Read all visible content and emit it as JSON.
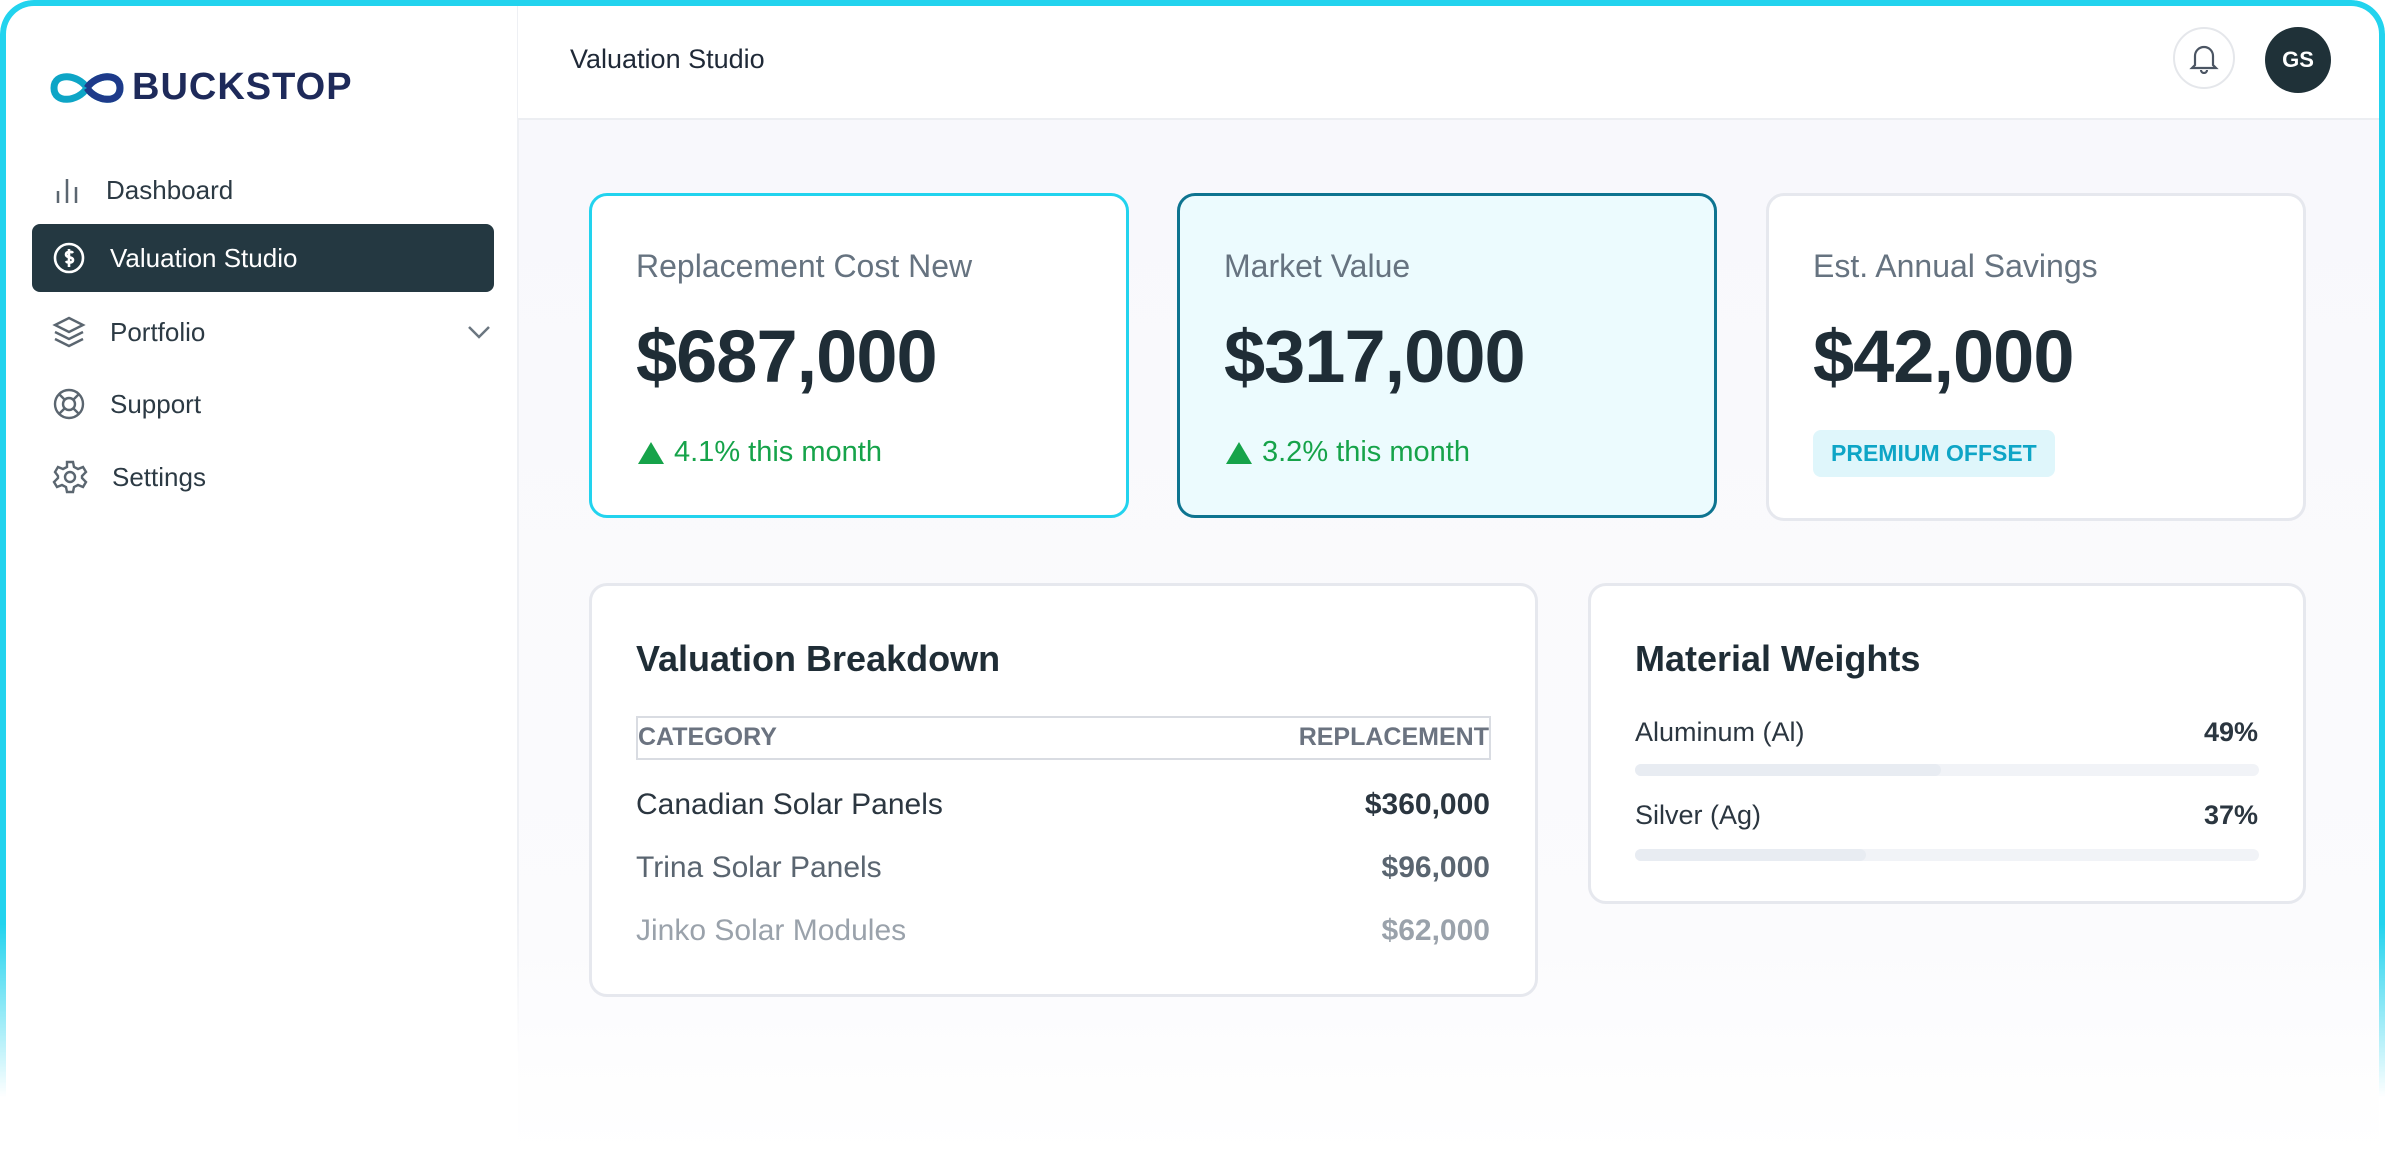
{
  "brand": "BUCKSTOP",
  "nav": [
    {
      "label": "Dashboard"
    },
    {
      "label": "Valuation Studio"
    },
    {
      "label": "Portfolio"
    },
    {
      "label": "Support"
    },
    {
      "label": "Settings"
    }
  ],
  "header": {
    "title": "Valuation Studio",
    "avatar": "GS"
  },
  "kpis": [
    {
      "label": "Replacement Cost New",
      "value": "$687,000",
      "change": "4.1% this month"
    },
    {
      "label": "Market Value",
      "value": "$317,000",
      "change": "3.2% this month"
    },
    {
      "label": "Est. Annual Savings",
      "value": "$42,000",
      "badge": "PREMIUM OFFSET"
    }
  ],
  "breakdown": {
    "title": "Valuation Breakdown",
    "columns": [
      "CATEGORY",
      "REPLACEMENT"
    ],
    "rows": [
      [
        "Canadian Solar Panels",
        "$360,000"
      ],
      [
        "Trina Solar Panels",
        "$96,000"
      ],
      [
        "Jinko Solar Modules",
        "$62,000"
      ]
    ]
  },
  "materials": {
    "title": "Material Weights",
    "items": [
      {
        "name": "Aluminum (Al)",
        "value": 49,
        "value_label": "49%"
      },
      {
        "name": "Silver (Ag)",
        "value": 37,
        "value_label": "37%"
      }
    ]
  }
}
